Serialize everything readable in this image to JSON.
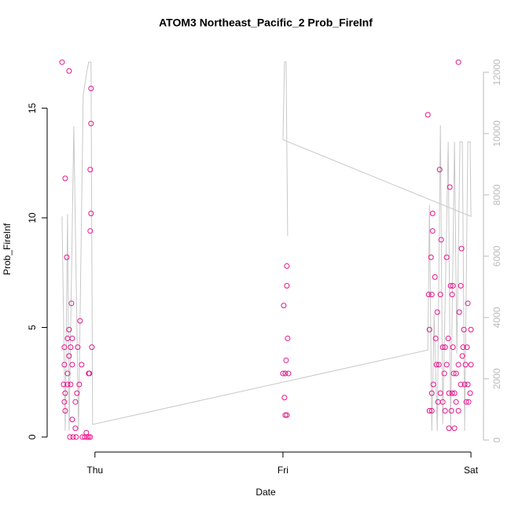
{
  "chart_data": {
    "type": "scatter",
    "title": "ATOM3 Northeast_Pacific_2 Prob_FireInf",
    "xlabel": "Date",
    "ylabel": "Prob_FireInf",
    "color": "#e6158c",
    "xlim": [
      -6.1,
      49.6
    ],
    "xticks": [
      {
        "value": 0,
        "label": "Thu"
      },
      {
        "value": 24,
        "label": "Fri"
      },
      {
        "value": 48,
        "label": "Sat"
      }
    ],
    "ylim": [
      -0.684,
      17.784
    ],
    "yticks": [
      0,
      5,
      10,
      15
    ],
    "y2lim": [
      -390,
      12820
    ],
    "y2ticks": [
      0,
      2000,
      4000,
      6000,
      8000,
      10000,
      12000
    ],
    "x": [
      -4.2,
      -3.3,
      -3.8,
      -3.6,
      -3.0,
      -1.9,
      -3.3,
      -3.9,
      -3.1,
      -2.2,
      -3.5,
      -2.9,
      -3.3,
      -3.9,
      -2.9,
      -1.7,
      -3.5,
      -0.8,
      -4.0,
      -3.5,
      -3.1,
      -2.0,
      -3.8,
      -2.3,
      -3.9,
      -2.5,
      -3.8,
      -2.9,
      -2.5,
      -1.1,
      -3.2,
      -2.8,
      -2.4,
      -1.6,
      -1.3,
      -1.0,
      -0.8,
      -0.5,
      -0.5,
      -0.6,
      -0.5,
      -0.6,
      -0.4,
      -0.7,
      -0.6,
      24.5,
      24.5,
      24.1,
      24.6,
      24.4,
      24.0,
      24.3,
      24.7,
      24.2,
      24.3,
      24.5,
      42.5,
      46.4,
      44.0,
      45.3,
      43.1,
      43.1,
      44.2,
      46.8,
      42.9,
      44.9,
      43.4,
      42.6,
      43.0,
      44.1,
      45.4,
      45.7,
      46.7,
      45.6,
      47.6,
      43.7,
      46.5,
      42.7,
      47.1,
      48.0,
      43.5,
      45.1,
      44.4,
      44.7,
      45.7,
      47.0,
      47.5,
      46.9,
      43.6,
      43.9,
      44.9,
      46.4,
      47.3,
      48.0,
      44.6,
      45.8,
      46.1,
      43.2,
      46.7,
      47.2,
      47.6,
      43.0,
      44.1,
      45.2,
      45.6,
      45.9,
      47.9,
      43.8,
      44.4,
      46.1,
      47.4,
      47.7,
      42.7,
      43.0,
      44.7,
      45.5,
      46.4,
      45.2,
      45.9
    ],
    "values": [
      17.1,
      16.7,
      11.8,
      8.2,
      6.1,
      5.3,
      4.9,
      4.1,
      4.1,
      4.1,
      4.5,
      4.5,
      3.7,
      3.3,
      3.3,
      3.3,
      2.9,
      2.9,
      2.4,
      2.4,
      2.4,
      2.4,
      2.0,
      2.0,
      1.6,
      1.6,
      1.2,
      0.8,
      0.4,
      0.2,
      0,
      0,
      0,
      0,
      0,
      0,
      0,
      15.9,
      14.3,
      12.2,
      10.2,
      9.4,
      4.1,
      2.9,
      0,
      7.8,
      6.9,
      6.0,
      4.5,
      3.5,
      2.9,
      2.9,
      2.9,
      1.8,
      1.0,
      1.0,
      14.7,
      17.1,
      12.2,
      11.4,
      10.2,
      9.4,
      9.0,
      8.6,
      8.2,
      8.2,
      7.3,
      6.5,
      6.5,
      6.5,
      6.9,
      6.9,
      6.9,
      6.5,
      6.1,
      5.7,
      5.7,
      4.9,
      4.9,
      4.9,
      4.5,
      4.5,
      4.1,
      4.1,
      4.1,
      4.1,
      4.1,
      3.7,
      3.3,
      3.3,
      3.3,
      3.3,
      3.3,
      3.3,
      2.9,
      2.9,
      2.9,
      2.4,
      2.4,
      2.4,
      2.4,
      2.0,
      2.0,
      2.0,
      2.0,
      2.0,
      2.0,
      1.6,
      1.6,
      1.6,
      1.6,
      1.6,
      1.2,
      1.2,
      1.2,
      1.2,
      1.2,
      0.4,
      0.4
    ],
    "line": {
      "color": "#c8c8c8",
      "axis": "y2",
      "x": [
        -4.2,
        -3.8,
        -3.5,
        -3.3,
        -2.7,
        -2.1,
        -1.5,
        -1.0,
        -0.8,
        -0.5,
        -0.3,
        42.5,
        42.7,
        43.0,
        43.3,
        43.7,
        44.1,
        44.4,
        45.1,
        45.4,
        45.9,
        46.2,
        46.6,
        46.9,
        47.2,
        47.6,
        47.9,
        48.0,
        24.0,
        24.2,
        24.4,
        24.6
      ],
      "values": [
        7300,
        300,
        7370,
        300,
        10240,
        300,
        11260,
        12080,
        12330,
        12330,
        510,
        2940,
        7680,
        300,
        4100,
        300,
        10270,
        510,
        9730,
        380,
        9730,
        2820,
        9730,
        9730,
        300,
        9730,
        9730,
        7300,
        9800,
        12340,
        12340,
        6660
      ]
    }
  }
}
